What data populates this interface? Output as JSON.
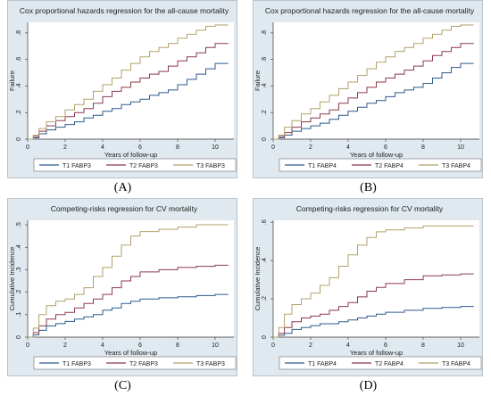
{
  "panels": [
    {
      "label": "(A)"
    },
    {
      "label": "(B)"
    },
    {
      "label": "(C)"
    },
    {
      "label": "(D)"
    }
  ],
  "colors": {
    "T1": "#2f5a8c",
    "T2": "#8b3a4a",
    "T3": "#b2a16a",
    "background": "#dfe9ef",
    "plot_area": "#ffffff"
  },
  "chart_data": [
    {
      "type": "line",
      "title": "Cox proportional hazards regression for the all-cause mortality",
      "xlabel": "Years of follow-up",
      "ylabel": "Failure",
      "xlim": [
        0,
        11
      ],
      "ylim": [
        0,
        0.88
      ],
      "x_ticks": [
        0,
        2,
        4,
        6,
        8,
        10
      ],
      "y_ticks": [
        0,
        0.2,
        0.4,
        0.6,
        0.8
      ],
      "y_tick_labels": [
        "0",
        ".2",
        ".4",
        ".6",
        ".8"
      ],
      "legend_position": "bottom",
      "grid": false,
      "series": [
        {
          "name": "T1 FABP3",
          "x": [
            0,
            0.3,
            0.6,
            1,
            1.5,
            2,
            2.5,
            3,
            3.5,
            4,
            4.5,
            5,
            5.5,
            6,
            6.5,
            7,
            7.5,
            8,
            8.5,
            9,
            9.5,
            10,
            10.7
          ],
          "y": [
            0,
            0.01,
            0.04,
            0.07,
            0.09,
            0.11,
            0.13,
            0.16,
            0.18,
            0.21,
            0.23,
            0.26,
            0.28,
            0.3,
            0.33,
            0.35,
            0.37,
            0.41,
            0.45,
            0.49,
            0.53,
            0.57,
            0.57
          ]
        },
        {
          "name": "T2 FABP3",
          "x": [
            0,
            0.3,
            0.6,
            1,
            1.5,
            2,
            2.5,
            3,
            3.5,
            4,
            4.5,
            5,
            5.5,
            6,
            6.5,
            7,
            7.5,
            8,
            8.5,
            9,
            9.5,
            10,
            10.7
          ],
          "y": [
            0,
            0.02,
            0.06,
            0.1,
            0.14,
            0.17,
            0.2,
            0.23,
            0.27,
            0.32,
            0.36,
            0.39,
            0.43,
            0.46,
            0.49,
            0.51,
            0.55,
            0.59,
            0.62,
            0.65,
            0.69,
            0.72,
            0.72
          ]
        },
        {
          "name": "T3 FABP3",
          "x": [
            0,
            0.3,
            0.6,
            1,
            1.5,
            2,
            2.5,
            3,
            3.5,
            4,
            4.5,
            5,
            5.5,
            6,
            6.5,
            7,
            7.5,
            8,
            8.5,
            9,
            9.5,
            10,
            10.7
          ],
          "y": [
            0,
            0.03,
            0.08,
            0.13,
            0.17,
            0.22,
            0.26,
            0.3,
            0.36,
            0.41,
            0.46,
            0.52,
            0.57,
            0.62,
            0.66,
            0.69,
            0.72,
            0.76,
            0.79,
            0.82,
            0.85,
            0.86,
            0.86
          ]
        }
      ]
    },
    {
      "type": "line",
      "title": "Cox proportional hazards regression for the all-cause mortality",
      "xlabel": "Years of follow-up",
      "ylabel": "Failure",
      "xlim": [
        0,
        11
      ],
      "ylim": [
        0,
        0.88
      ],
      "x_ticks": [
        0,
        2,
        4,
        6,
        8,
        10
      ],
      "y_ticks": [
        0,
        0.2,
        0.4,
        0.6,
        0.8
      ],
      "y_tick_labels": [
        "0",
        ".2",
        ".4",
        ".6",
        ".8"
      ],
      "legend_position": "bottom",
      "grid": false,
      "series": [
        {
          "name": "T1 FABP4",
          "x": [
            0,
            0.3,
            0.6,
            1,
            1.5,
            2,
            2.5,
            3,
            3.5,
            4,
            4.5,
            5,
            5.5,
            6,
            6.5,
            7,
            7.5,
            8,
            8.5,
            9,
            9.5,
            10,
            10.7
          ],
          "y": [
            0,
            0.01,
            0.03,
            0.06,
            0.08,
            0.1,
            0.12,
            0.15,
            0.18,
            0.21,
            0.24,
            0.27,
            0.29,
            0.32,
            0.35,
            0.37,
            0.39,
            0.42,
            0.46,
            0.5,
            0.54,
            0.57,
            0.57
          ]
        },
        {
          "name": "T2 FABP4",
          "x": [
            0,
            0.3,
            0.6,
            1,
            1.5,
            2,
            2.5,
            3,
            3.5,
            4,
            4.5,
            5,
            5.5,
            6,
            6.5,
            7,
            7.5,
            8,
            8.5,
            9,
            9.5,
            10,
            10.7
          ],
          "y": [
            0,
            0.02,
            0.05,
            0.09,
            0.13,
            0.16,
            0.19,
            0.22,
            0.27,
            0.31,
            0.35,
            0.39,
            0.43,
            0.46,
            0.49,
            0.52,
            0.55,
            0.59,
            0.63,
            0.66,
            0.69,
            0.72,
            0.72
          ]
        },
        {
          "name": "T3 FABP4",
          "x": [
            0,
            0.3,
            0.6,
            1,
            1.5,
            2,
            2.5,
            3,
            3.5,
            4,
            4.5,
            5,
            5.5,
            6,
            6.5,
            7,
            7.5,
            8,
            8.5,
            9,
            9.5,
            10,
            10.7
          ],
          "y": [
            0,
            0.03,
            0.09,
            0.14,
            0.19,
            0.23,
            0.28,
            0.33,
            0.38,
            0.43,
            0.48,
            0.53,
            0.58,
            0.62,
            0.66,
            0.69,
            0.72,
            0.76,
            0.79,
            0.82,
            0.85,
            0.86,
            0.86
          ]
        }
      ]
    },
    {
      "type": "line",
      "title": "Competing-risks regression for CV mortality",
      "xlabel": "Years of follow-up",
      "ylabel": "Cumulative Incidence",
      "xlim": [
        0,
        11
      ],
      "ylim": [
        0,
        0.52
      ],
      "x_ticks": [
        0,
        2,
        4,
        6,
        8,
        10
      ],
      "y_ticks": [
        0,
        0.1,
        0.2,
        0.3,
        0.4,
        0.5
      ],
      "y_tick_labels": [
        "0",
        ".1",
        ".2",
        ".3",
        ".4",
        ".5"
      ],
      "legend_position": "bottom",
      "grid": false,
      "series": [
        {
          "name": "T1 FABP3",
          "x": [
            0,
            0.3,
            0.6,
            1,
            1.5,
            2,
            2.5,
            3,
            3.5,
            4,
            4.5,
            5,
            5.5,
            6,
            7,
            8,
            9,
            10,
            10.7
          ],
          "y": [
            0,
            0.01,
            0.03,
            0.05,
            0.06,
            0.07,
            0.08,
            0.09,
            0.1,
            0.12,
            0.13,
            0.15,
            0.16,
            0.17,
            0.175,
            0.18,
            0.185,
            0.19,
            0.19
          ]
        },
        {
          "name": "T2 FABP3",
          "x": [
            0,
            0.3,
            0.6,
            1,
            1.5,
            2,
            2.5,
            3,
            3.5,
            4,
            4.5,
            5,
            5.5,
            6,
            7,
            8,
            9,
            10,
            10.7
          ],
          "y": [
            0,
            0.02,
            0.05,
            0.08,
            0.1,
            0.11,
            0.13,
            0.15,
            0.17,
            0.19,
            0.22,
            0.25,
            0.27,
            0.29,
            0.3,
            0.31,
            0.315,
            0.32,
            0.32
          ]
        },
        {
          "name": "T3 FABP3",
          "x": [
            0,
            0.3,
            0.6,
            1,
            1.5,
            2,
            2.5,
            3,
            3.5,
            4,
            4.5,
            5,
            5.5,
            6,
            7,
            8,
            9,
            10,
            10.7
          ],
          "y": [
            0,
            0.04,
            0.1,
            0.14,
            0.16,
            0.17,
            0.19,
            0.22,
            0.27,
            0.31,
            0.36,
            0.41,
            0.45,
            0.47,
            0.48,
            0.49,
            0.5,
            0.5,
            0.5
          ]
        }
      ]
    },
    {
      "type": "line",
      "title": "Competing-risks regression for CV mortality",
      "xlabel": "Years of follow-up",
      "ylabel": "Cumulative Incidence",
      "xlim": [
        0,
        11
      ],
      "ylim": [
        0,
        0.61
      ],
      "x_ticks": [
        0,
        2,
        4,
        6,
        8,
        10
      ],
      "y_ticks": [
        0,
        0.2,
        0.4,
        0.6
      ],
      "y_tick_labels": [
        "0",
        ".2",
        ".4",
        ".6"
      ],
      "legend_position": "bottom",
      "grid": false,
      "series": [
        {
          "name": "T1 FABP4",
          "x": [
            0,
            0.3,
            0.6,
            1,
            1.5,
            2,
            2.5,
            3,
            3.5,
            4,
            4.5,
            5,
            5.5,
            6,
            7,
            8,
            9,
            10,
            10.7
          ],
          "y": [
            0,
            0.01,
            0.02,
            0.04,
            0.05,
            0.06,
            0.07,
            0.07,
            0.08,
            0.09,
            0.1,
            0.11,
            0.12,
            0.13,
            0.14,
            0.15,
            0.155,
            0.16,
            0.16
          ]
        },
        {
          "name": "T2 FABP4",
          "x": [
            0,
            0.3,
            0.6,
            1,
            1.5,
            2,
            2.5,
            3,
            3.5,
            4,
            4.5,
            5,
            5.5,
            6,
            7,
            8,
            9,
            10,
            10.7
          ],
          "y": [
            0,
            0.02,
            0.05,
            0.08,
            0.1,
            0.11,
            0.12,
            0.14,
            0.16,
            0.18,
            0.21,
            0.24,
            0.26,
            0.28,
            0.3,
            0.32,
            0.325,
            0.33,
            0.33
          ]
        },
        {
          "name": "T3 FABP4",
          "x": [
            0,
            0.3,
            0.6,
            1,
            1.5,
            2,
            2.5,
            3,
            3.5,
            4,
            4.5,
            5,
            5.5,
            6,
            7,
            8,
            9,
            10,
            10.7
          ],
          "y": [
            0,
            0.05,
            0.12,
            0.17,
            0.2,
            0.23,
            0.27,
            0.31,
            0.37,
            0.43,
            0.48,
            0.52,
            0.55,
            0.56,
            0.57,
            0.58,
            0.58,
            0.58,
            0.58
          ]
        }
      ]
    }
  ]
}
